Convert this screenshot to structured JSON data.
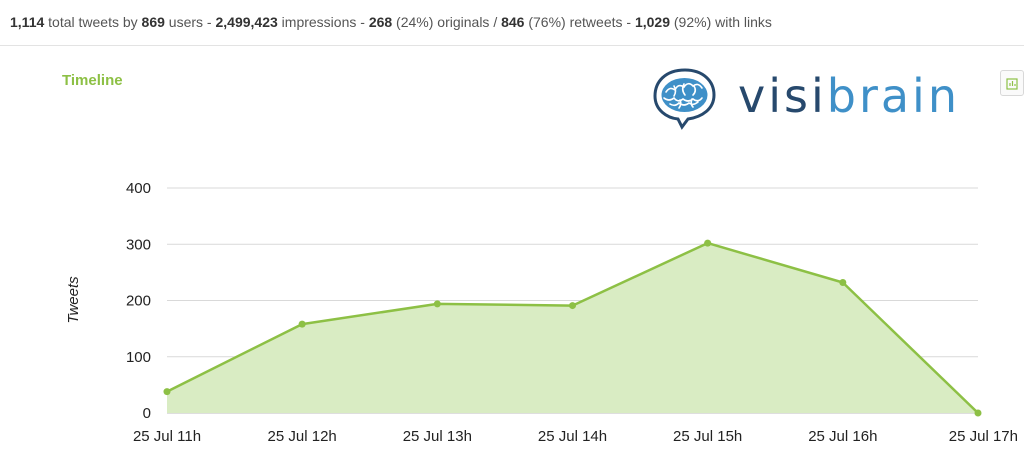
{
  "stats": {
    "total_tweets": "1,114",
    "t1": " total tweets by ",
    "users": "869",
    "t2": " users - ",
    "impressions": "2,499,423",
    "t3": " impressions - ",
    "originals": "268",
    "t4": " (24%) originals / ",
    "retweets": "846",
    "t5": " (76%) retweets - ",
    "links": "1,029",
    "t6": " (92%) with links"
  },
  "logo": {
    "part1": "visi",
    "part2": "brain",
    "icon": "brain-speech-bubble-icon"
  },
  "export": {
    "icon": "chart-export-icon"
  },
  "colors": {
    "accent": "#8dc045",
    "fill": "#d9ecc3",
    "grid": "#d9d9d9",
    "logo_dark": "#27496d",
    "logo_light": "#3f90c8"
  },
  "chart_data": {
    "type": "area",
    "title": "Timeline",
    "ylabel": "Tweets",
    "xlabel": "",
    "categories": [
      "25 Jul 11h",
      "25 Jul 12h",
      "25 Jul 13h",
      "25 Jul 14h",
      "25 Jul 15h",
      "25 Jul 16h",
      "25 Jul 17h"
    ],
    "values": [
      38,
      158,
      194,
      191,
      302,
      232,
      0
    ],
    "yticks": [
      0,
      100,
      200,
      300,
      400
    ],
    "ylim": [
      0,
      400
    ],
    "grid": true,
    "legend": "none"
  }
}
